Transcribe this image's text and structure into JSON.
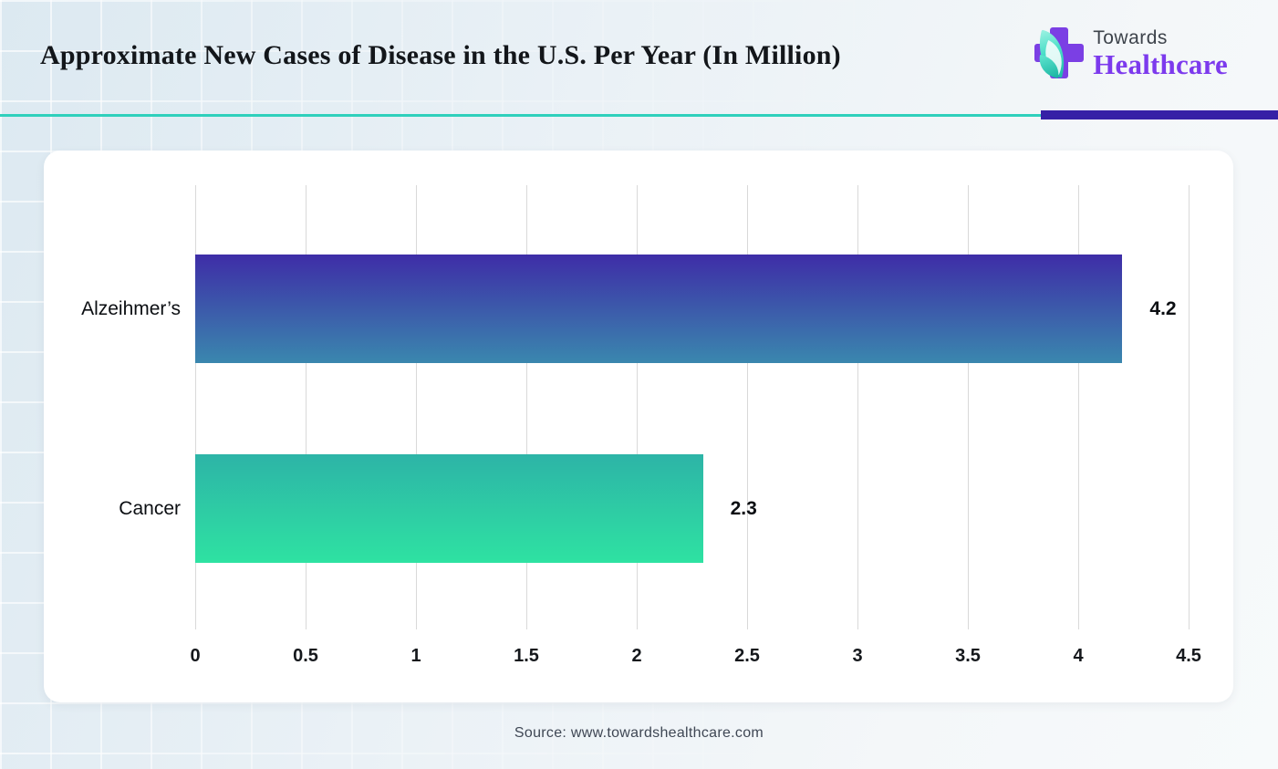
{
  "header": {
    "title": "Approximate New Cases of Disease in the U.S. Per Year (In Million)",
    "brand": {
      "line1": "Towards",
      "line2": "Healthcare"
    },
    "accent_teal": "#2fd0bc",
    "accent_purple": "#3620a6",
    "brand_purple": "#7c3aed"
  },
  "chart_data": {
    "type": "bar",
    "orientation": "horizontal",
    "categories": [
      "Alzeihmer’s",
      "Cancer"
    ],
    "values": [
      4.2,
      2.3
    ],
    "value_labels": [
      "4.2",
      "2.3"
    ],
    "x_ticks": [
      "0",
      "0.5",
      "1",
      "1.5",
      "2",
      "2.5",
      "3",
      "3.5",
      "4",
      "4.5"
    ],
    "xlim": [
      0,
      4.5
    ],
    "grid": true,
    "legend": false,
    "bar_gradients": [
      {
        "top": "#3e2da7",
        "bottom": "#3a87ae"
      },
      {
        "top": "#2db4a7",
        "bottom": "#2ee2a2"
      }
    ]
  },
  "footer": {
    "source": "Source: www.towardshealthcare.com"
  }
}
